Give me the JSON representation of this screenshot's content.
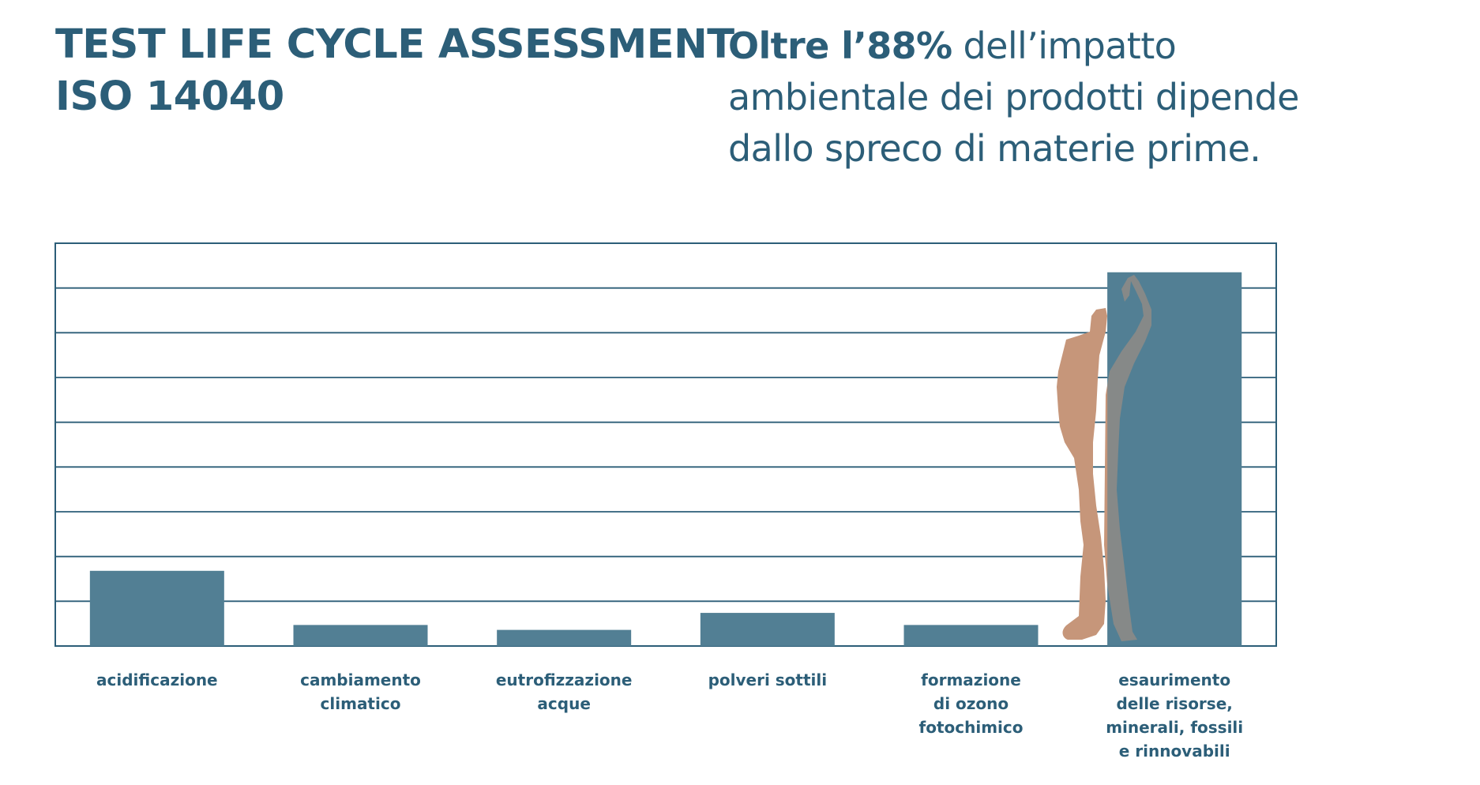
{
  "header": {
    "title_lines": [
      "TEST LIFE CYCLE ASSESSMENT",
      "ISO 14040"
    ],
    "subtitle_bold": "Oltre l’88%",
    "subtitle_lines": [
      " dell’impatto",
      "ambientale dei prodotti dipende",
      "dallo spreco di materie prime."
    ]
  },
  "chart_data": {
    "type": "bar",
    "title": "",
    "xlabel": "",
    "ylabel": "",
    "grid": true,
    "gridlines": 9,
    "ylim": [
      0,
      9
    ],
    "categories": [
      [
        "acidificazione"
      ],
      [
        "cambiamento",
        "climatico"
      ],
      [
        "eutrofizzazione",
        "acque"
      ],
      [
        "polveri sottili"
      ],
      [
        "formazione",
        "di ozono",
        "fotochimico"
      ],
      [
        "esaurimento",
        "delle risorse,",
        "minerali, fossili",
        "e rinnovabili"
      ]
    ],
    "values": [
      1.68,
      0.47,
      0.36,
      0.74,
      0.47,
      8.35
    ],
    "bar_color": "#527f94",
    "grid_color": "#2c5e78",
    "figure_color": "#c6967a",
    "figure_icon": "human-figure-icon"
  }
}
